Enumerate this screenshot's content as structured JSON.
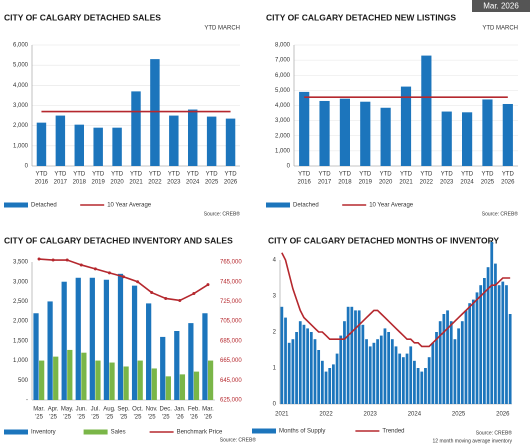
{
  "badge": "Mar. 2026",
  "chart_data": [
    {
      "type": "bar",
      "title": "CITY OF CALGARY DETACHED SALES",
      "subtitle": "YTD  MARCH",
      "categories": [
        [
          "YTD",
          "2016"
        ],
        [
          "YTD",
          "2017"
        ],
        [
          "YTD",
          "2018"
        ],
        [
          "YTD",
          "2019"
        ],
        [
          "YTD",
          "2020"
        ],
        [
          "YTD",
          "2021"
        ],
        [
          "YTD",
          "2022"
        ],
        [
          "YTD",
          "2023"
        ],
        [
          "YTD",
          "2024"
        ],
        [
          "YTD",
          "2025"
        ],
        [
          "YTD",
          "2026"
        ]
      ],
      "series": [
        {
          "name": "Detached",
          "type": "bar",
          "color": "#1c75bc",
          "values": [
            2150,
            2500,
            2050,
            1900,
            1900,
            3700,
            5300,
            2500,
            2800,
            2450,
            2350
          ]
        },
        {
          "name": "10 Year Average",
          "type": "line",
          "color": "#b5282e",
          "values": [
            2700,
            2700,
            2700,
            2700,
            2700,
            2700,
            2700,
            2700,
            2700,
            2700,
            2700
          ]
        }
      ],
      "ylim": [
        0,
        6000
      ],
      "yticks": [
        0,
        {
          "value": 1000,
          "label": "1,000"
        },
        {
          "value": 2000,
          "label": "2,000"
        },
        {
          "value": 3000,
          "label": "3,000"
        },
        {
          "value": 4000,
          "label": "4,000"
        },
        {
          "value": 5000,
          "label": "5,000"
        },
        {
          "value": 6000,
          "label": "6,000"
        }
      ],
      "grid": true,
      "source": "Source: CREB®"
    },
    {
      "type": "bar",
      "title": "CITY OF CALGARY DETACHED NEW LISTINGS",
      "subtitle": "YTD  MARCH",
      "categories": [
        [
          "YTD",
          "2016"
        ],
        [
          "YTD",
          "2017"
        ],
        [
          "YTD",
          "2018"
        ],
        [
          "YTD",
          "2019"
        ],
        [
          "YTD",
          "2020"
        ],
        [
          "YTD",
          "2021"
        ],
        [
          "YTD",
          "2022"
        ],
        [
          "YTD",
          "2023"
        ],
        [
          "YTD",
          "2024"
        ],
        [
          "YTD",
          "2025"
        ],
        [
          "YTD",
          "2026"
        ]
      ],
      "series": [
        {
          "name": "Detached",
          "type": "bar",
          "color": "#1c75bc",
          "values": [
            4900,
            4300,
            4450,
            4250,
            3850,
            5250,
            7300,
            3600,
            3550,
            4400,
            4100
          ]
        },
        {
          "name": "10 Year Average",
          "type": "line",
          "color": "#b5282e",
          "values": [
            4550,
            4550,
            4550,
            4550,
            4550,
            4550,
            4550,
            4550,
            4550,
            4550,
            4550
          ]
        }
      ],
      "ylim": [
        0,
        8000
      ],
      "yticks": [
        0,
        {
          "value": 1000,
          "label": "1,000"
        },
        {
          "value": 2000,
          "label": "2,000"
        },
        {
          "value": 3000,
          "label": "3,000"
        },
        {
          "value": 4000,
          "label": "4,000"
        },
        {
          "value": 5000,
          "label": "5,000"
        },
        {
          "value": 6000,
          "label": "6,000"
        },
        {
          "value": 7000,
          "label": "7,000"
        },
        {
          "value": 8000,
          "label": "8,000"
        }
      ],
      "grid": true,
      "source": "Source: CREB®"
    },
    {
      "type": "bar",
      "title": "CITY OF CALGARY DETACHED INVENTORY AND SALES",
      "categories": [
        [
          "Mar.",
          "'25"
        ],
        [
          "Apr.",
          "'25"
        ],
        [
          "May.",
          "'25"
        ],
        [
          "Jun.",
          "'25"
        ],
        [
          "Jul.",
          "'25"
        ],
        [
          "Aug.",
          "'25"
        ],
        [
          "Sep.",
          "'25"
        ],
        [
          "Oct.",
          "'25"
        ],
        [
          "Nov.",
          "'25"
        ],
        [
          "Dec.",
          "'25"
        ],
        [
          "Jan.",
          "'26"
        ],
        [
          "Feb.",
          "'26"
        ],
        [
          "Mar.",
          "'26"
        ]
      ],
      "series": [
        {
          "name": "Inventory",
          "type": "bar",
          "color": "#1c75bc",
          "values": [
            2200,
            2500,
            3000,
            3100,
            3100,
            3050,
            3200,
            2900,
            2450,
            1600,
            1750,
            1950,
            2200
          ]
        },
        {
          "name": "Sales",
          "type": "bar",
          "color": "#7ab648",
          "values": [
            1000,
            1100,
            1270,
            1200,
            1000,
            950,
            850,
            1000,
            800,
            600,
            650,
            720,
            1000
          ]
        },
        {
          "name": "Benchmark Price",
          "type": "line",
          "axis": "y2",
          "color": "#b5282e",
          "values": [
            768000,
            767000,
            767000,
            762000,
            758000,
            754000,
            750000,
            745000,
            734000,
            728000,
            726000,
            733000,
            742000
          ]
        }
      ],
      "ylim": [
        0,
        3500
      ],
      "yticks": [
        {
          "value": 0,
          "label": "-"
        },
        500,
        {
          "value": 1000,
          "label": "1,000"
        },
        {
          "value": 1500,
          "label": "1,500"
        },
        {
          "value": 2000,
          "label": "2,000"
        },
        {
          "value": 2500,
          "label": "2,500"
        },
        {
          "value": 3000,
          "label": "3,000"
        },
        {
          "value": 3500,
          "label": "3,500"
        }
      ],
      "y2lim": [
        625000,
        765000
      ],
      "y2ticks": [
        {
          "value": 625000,
          "label": "625,000"
        },
        {
          "value": 645000,
          "label": "645,000"
        },
        {
          "value": 665000,
          "label": "665,000"
        },
        {
          "value": 685000,
          "label": "685,000"
        },
        {
          "value": 705000,
          "label": "705,000"
        },
        {
          "value": 725000,
          "label": "725,000"
        },
        {
          "value": 745000,
          "label": "745,000"
        },
        {
          "value": 765000,
          "label": "765,000"
        }
      ],
      "grid": false,
      "source": "Source: CREB®"
    },
    {
      "type": "bar",
      "title": "CITY OF CALGARY DETACHED MONTHS OF INVENTORY",
      "categories": [
        [
          "2021"
        ],
        null,
        null,
        null,
        null,
        null,
        null,
        null,
        null,
        null,
        null,
        null,
        [
          "2022"
        ],
        null,
        null,
        null,
        null,
        null,
        null,
        null,
        null,
        null,
        null,
        null,
        [
          "2023"
        ],
        null,
        null,
        null,
        null,
        null,
        null,
        null,
        null,
        null,
        null,
        null,
        [
          "2024"
        ],
        null,
        null,
        null,
        null,
        null,
        null,
        null,
        null,
        null,
        null,
        null,
        [
          "2025"
        ],
        null,
        null,
        null,
        null,
        null,
        null,
        null,
        null,
        null,
        null,
        null,
        [
          "2026"
        ],
        null,
        null
      ],
      "series": [
        {
          "name": "Months of Supply",
          "type": "bar",
          "color": "#1c75bc",
          "values": [
            2.7,
            2.4,
            1.7,
            1.8,
            2.0,
            2.3,
            2.2,
            2.1,
            2.0,
            1.8,
            1.5,
            1.2,
            0.9,
            1.0,
            1.1,
            1.4,
            1.9,
            2.3,
            2.7,
            2.7,
            2.6,
            2.6,
            2.2,
            1.8,
            1.6,
            1.7,
            1.8,
            1.9,
            2.1,
            2.0,
            1.8,
            1.6,
            1.4,
            1.3,
            1.4,
            1.6,
            1.2,
            1.0,
            0.9,
            1.0,
            1.3,
            1.7,
            2.0,
            2.3,
            2.5,
            2.6,
            2.3,
            1.8,
            2.1,
            2.3,
            2.6,
            2.8,
            2.9,
            3.1,
            3.3,
            3.5,
            3.8,
            4.5,
            3.9,
            3.3,
            3.4,
            3.3,
            2.5
          ]
        },
        {
          "name": "Trended",
          "type": "line",
          "color": "#b5282e",
          "values": [
            4.2,
            4.0,
            3.6,
            3.2,
            2.9,
            2.6,
            2.4,
            2.3,
            2.2,
            2.1,
            2.0,
            2.0,
            1.9,
            1.8,
            1.8,
            1.8,
            1.8,
            1.8,
            1.9,
            2.0,
            2.1,
            2.2,
            2.3,
            2.4,
            2.5,
            2.6,
            2.6,
            2.5,
            2.4,
            2.3,
            2.2,
            2.1,
            2.0,
            1.9,
            1.8,
            1.8,
            1.7,
            1.7,
            1.6,
            1.6,
            1.6,
            1.7,
            1.8,
            1.9,
            2.0,
            2.1,
            2.2,
            2.3,
            2.4,
            2.5,
            2.6,
            2.7,
            2.8,
            2.9,
            3.0,
            3.1,
            3.2,
            3.3,
            3.3,
            3.4,
            3.5,
            3.5,
            3.5
          ]
        }
      ],
      "ylim": [
        0,
        4
      ],
      "yticks": [
        0,
        1,
        2,
        3,
        4
      ],
      "grid": false,
      "source": "Source: CREB®",
      "note": "12 month moving average inventory"
    }
  ]
}
